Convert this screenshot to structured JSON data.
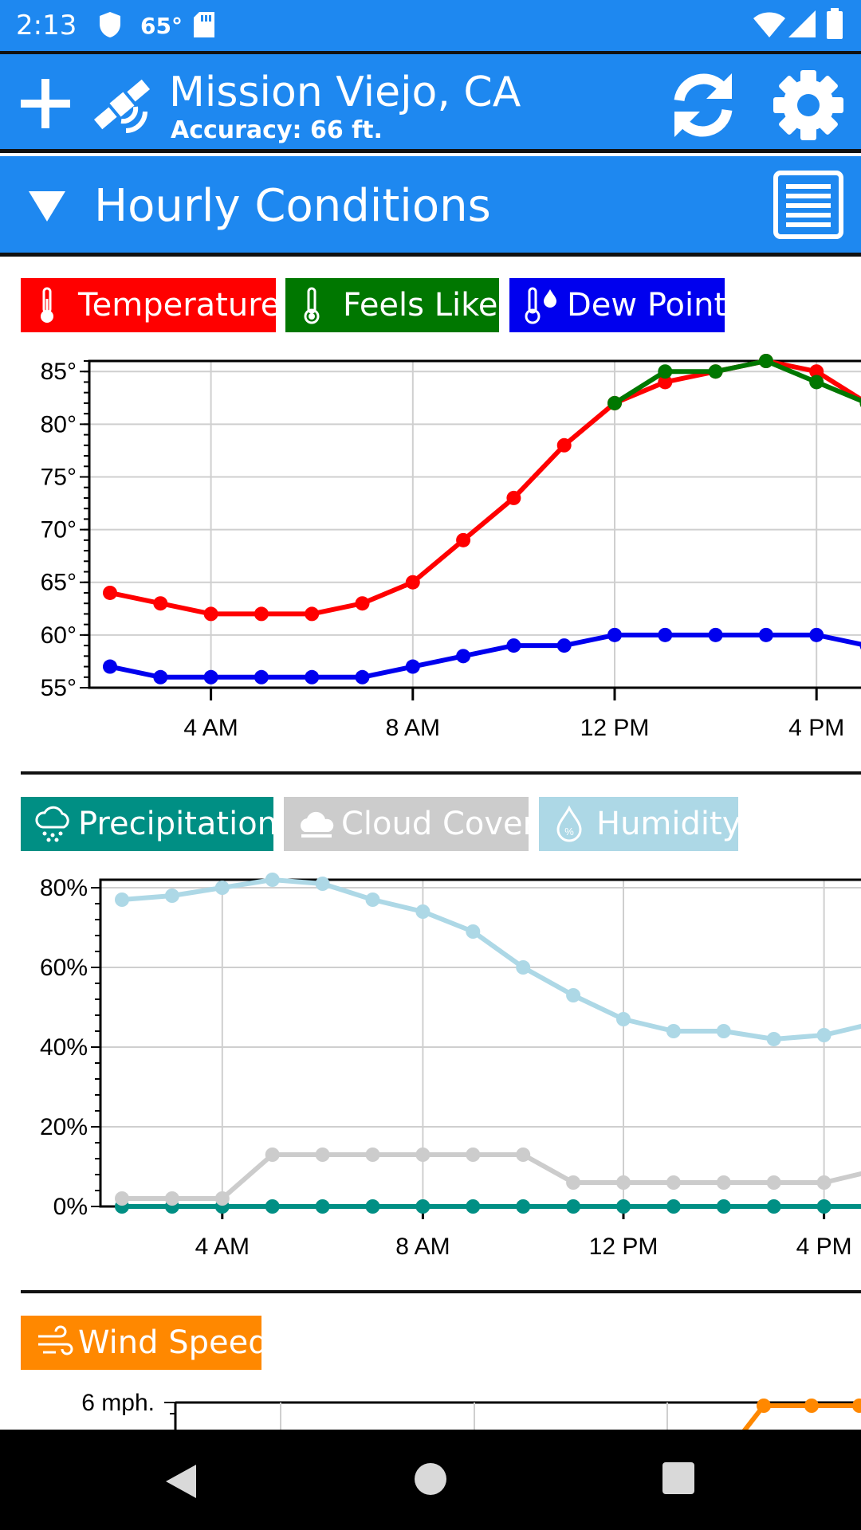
{
  "status_bar": {
    "time": "2:13",
    "temperature": "65°"
  },
  "app_bar": {
    "location": "Mission Viejo, CA",
    "accuracy": "Accuracy: 66 ft."
  },
  "section": {
    "title": "Hourly Conditions"
  },
  "colors": {
    "app_blue": "#1e88f0",
    "temperature": "#ff0000",
    "feels_like": "#007700",
    "dew_point": "#0000ee",
    "precipitation": "#008f84",
    "cloud_cover": "#cccccc",
    "humidity": "#add8e6",
    "wind_speed": "#ff8800"
  },
  "legend_temp": [
    "Temperature",
    "Feels Like",
    "Dew Point"
  ],
  "legend_precip": [
    "Precipitation",
    "Cloud Cover",
    "Humidity"
  ],
  "legend_wind": [
    "Wind Speed"
  ],
  "chart_data": [
    {
      "type": "line",
      "x_tick_labels": [
        "4 AM",
        "8 AM",
        "12 PM",
        "4 PM"
      ],
      "y_tick_labels": [
        "85°",
        "80°",
        "75°",
        "70°",
        "65°",
        "60°",
        "55°"
      ],
      "ylim": [
        55,
        86
      ],
      "grid": true,
      "x_hours": [
        2,
        3,
        4,
        5,
        6,
        7,
        8,
        9,
        10,
        11,
        12,
        13,
        14,
        15,
        16,
        17
      ],
      "series": [
        {
          "name": "Temperature",
          "values": [
            64,
            63,
            62,
            62,
            62,
            63,
            65,
            69,
            73,
            78,
            82,
            84,
            85,
            86,
            85,
            82
          ]
        },
        {
          "name": "Feels Like",
          "values": [
            null,
            null,
            null,
            null,
            null,
            null,
            null,
            null,
            null,
            null,
            82,
            85,
            85,
            86,
            84,
            82
          ]
        },
        {
          "name": "Dew Point",
          "values": [
            57,
            56,
            56,
            56,
            56,
            56,
            57,
            58,
            59,
            59,
            60,
            60,
            60,
            60,
            60,
            59
          ]
        }
      ]
    },
    {
      "type": "line",
      "x_tick_labels": [
        "4 AM",
        "8 AM",
        "12 PM",
        "4 PM"
      ],
      "y_tick_labels": [
        "80%",
        "60%",
        "40%",
        "20%",
        "0%"
      ],
      "ylim": [
        0,
        82
      ],
      "grid": true,
      "x_hours": [
        2,
        3,
        4,
        5,
        6,
        7,
        8,
        9,
        10,
        11,
        12,
        13,
        14,
        15,
        16,
        17
      ],
      "series": [
        {
          "name": "Precipitation",
          "values": [
            0,
            0,
            0,
            0,
            0,
            0,
            0,
            0,
            0,
            0,
            0,
            0,
            0,
            0,
            0,
            0
          ]
        },
        {
          "name": "Cloud Cover",
          "values": [
            2,
            2,
            2,
            13,
            13,
            13,
            13,
            13,
            13,
            6,
            6,
            6,
            6,
            6,
            6,
            9
          ]
        },
        {
          "name": "Humidity",
          "values": [
            77,
            78,
            80,
            82,
            81,
            77,
            74,
            69,
            60,
            53,
            47,
            44,
            44,
            42,
            43,
            46
          ]
        }
      ]
    },
    {
      "type": "line",
      "y_tick_labels": [
        "6 mph."
      ],
      "series": [
        {
          "name": "Wind Speed",
          "values": [
            6,
            6,
            6
          ]
        }
      ]
    }
  ]
}
